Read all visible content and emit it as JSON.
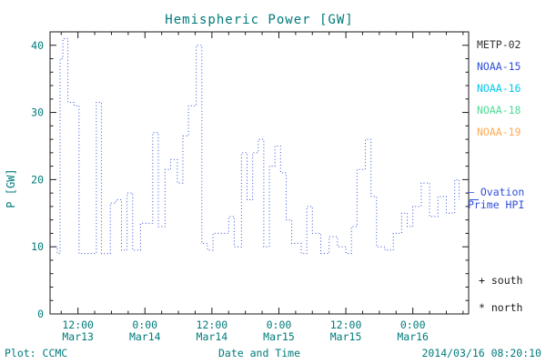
{
  "title": "Hemispheric Power [GW]",
  "y_axis_label": "P [GW]",
  "footer": {
    "plot_credit": "Plot: CCMC",
    "xlabel": "Date and Time",
    "timestamp": "2014/03/16 08:20:10"
  },
  "legend": {
    "satellites": [
      {
        "label": "METP-02",
        "color": "#333333"
      },
      {
        "label": "NOAA-15",
        "color": "#2f4fd8"
      },
      {
        "label": "NOAA-16",
        "color": "#00c8e8"
      },
      {
        "label": "NOAA-18",
        "color": "#4ddc96"
      },
      {
        "label": "NOAA-19",
        "color": "#ffaa55"
      }
    ],
    "ovation": {
      "dash": "–",
      "line1": " Ovation",
      "line2": "Prime HPI"
    },
    "south_marker": "+ south",
    "north_marker": "* north"
  },
  "colors": {
    "accent_teal": "#007a7a",
    "line_blue": "#2f4fd8",
    "axis_black": "#1a1a1a"
  },
  "chart_data": {
    "type": "line",
    "style": "dotted-step",
    "title": "Hemispheric Power [GW]",
    "xlabel": "Date and Time",
    "ylabel": "P [GW]",
    "ylim": [
      0,
      42
    ],
    "yticks": [
      0,
      10,
      20,
      30,
      40
    ],
    "y_minor_step": 2,
    "x_unit": "hours since Mar13 00:00",
    "xlim": [
      7,
      82
    ],
    "x_minor_step": 3,
    "xticks": [
      {
        "t": 12,
        "time": "12:00",
        "date": "Mar13"
      },
      {
        "t": 24,
        "time": "0:00",
        "date": "Mar14"
      },
      {
        "t": 36,
        "time": "12:00",
        "date": "Mar14"
      },
      {
        "t": 48,
        "time": "0:00",
        "date": "Mar15"
      },
      {
        "t": 60,
        "time": "12:00",
        "date": "Mar15"
      },
      {
        "t": 72,
        "time": "0:00",
        "date": "Mar16"
      }
    ],
    "grid": false,
    "legend_position": "right",
    "series": [
      {
        "name": "Ovation Prime HPI",
        "color": "#2f4fd8",
        "points": [
          [
            7.5,
            10
          ],
          [
            8.3,
            9
          ],
          [
            8.8,
            38
          ],
          [
            9.3,
            41
          ],
          [
            10.2,
            31.5
          ],
          [
            11.3,
            31
          ],
          [
            12.2,
            9
          ],
          [
            14.8,
            9
          ],
          [
            15.3,
            31.5
          ],
          [
            16.2,
            9
          ],
          [
            17.8,
            16.5
          ],
          [
            18.8,
            17
          ],
          [
            19.8,
            9.5
          ],
          [
            20.8,
            18
          ],
          [
            21.8,
            9.5
          ],
          [
            23.2,
            13.5
          ],
          [
            24.6,
            13.5
          ],
          [
            25.4,
            27
          ],
          [
            26.4,
            13
          ],
          [
            27.6,
            21.5
          ],
          [
            28.6,
            23
          ],
          [
            29.8,
            19.5
          ],
          [
            30.8,
            26.5
          ],
          [
            31.8,
            31
          ],
          [
            33.2,
            40
          ],
          [
            34.2,
            10.5
          ],
          [
            35.2,
            9.5
          ],
          [
            36.2,
            12
          ],
          [
            38,
            12
          ],
          [
            39,
            14.5
          ],
          [
            40,
            10
          ],
          [
            41.3,
            24
          ],
          [
            42.3,
            17
          ],
          [
            43.3,
            24
          ],
          [
            44.3,
            26
          ],
          [
            45.3,
            10
          ],
          [
            46.3,
            22
          ],
          [
            47.3,
            25
          ],
          [
            48.3,
            21
          ],
          [
            49.3,
            14
          ],
          [
            50.3,
            10.5
          ],
          [
            52,
            9
          ],
          [
            53,
            16
          ],
          [
            54,
            12
          ],
          [
            55.5,
            9
          ],
          [
            57,
            11.5
          ],
          [
            58.5,
            10
          ],
          [
            60,
            9
          ],
          [
            61,
            13
          ],
          [
            62,
            21.5
          ],
          [
            63.5,
            26
          ],
          [
            64.5,
            17.5
          ],
          [
            65.5,
            10
          ],
          [
            67,
            9.5
          ],
          [
            68.5,
            12
          ],
          [
            70,
            15
          ],
          [
            71,
            13
          ],
          [
            72,
            16
          ],
          [
            73.5,
            19.5
          ],
          [
            75,
            14.5
          ],
          [
            76.5,
            17.5
          ],
          [
            78,
            15
          ],
          [
            79.5,
            20
          ],
          [
            80.3,
            17
          ]
        ]
      }
    ]
  }
}
